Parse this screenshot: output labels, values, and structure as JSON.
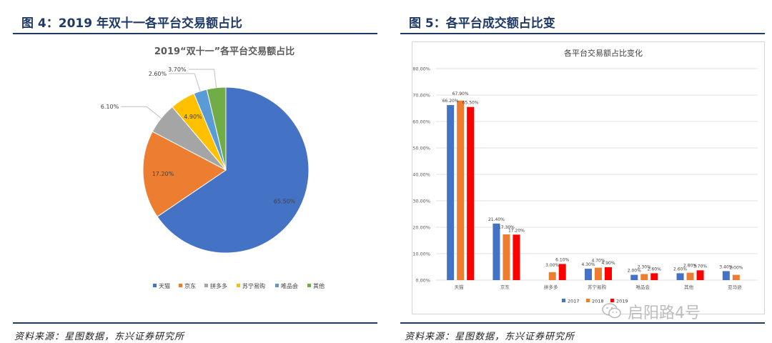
{
  "left_panel": {
    "figure_title": "图 4：2019 年双十一各平台交易额占比",
    "source": "资料来源：星图数据，东兴证券研究所"
  },
  "right_panel": {
    "figure_title": "图 5：各平台成交额占比变",
    "source": "资料来源：星图数据，东兴证券研究所"
  },
  "watermark": {
    "text": "启阳路4号",
    "icon": "wechat-icon"
  },
  "colors": {
    "rule": "#1f3a66",
    "blue": "#4472c4",
    "orange": "#ed7d31",
    "gray": "#a5a5a5",
    "yellow": "#ffc000",
    "lightblue": "#5b9bd5",
    "green": "#70ad47",
    "red": "#ff0000"
  },
  "chart_data": [
    {
      "type": "pie",
      "title": "2019“双十一”各平台交易额占比",
      "labels": [
        "天猫",
        "京东",
        "拼多多",
        "苏宁易购",
        "唯品会",
        "其他"
      ],
      "values": [
        65.5,
        17.2,
        6.1,
        4.9,
        2.6,
        3.7
      ],
      "value_labels": [
        "65.50%",
        "17.20%",
        "6.10%",
        "4.90%",
        "2.60%",
        "3.70%"
      ],
      "legend_position": "bottom"
    },
    {
      "type": "bar",
      "title": "各平台交易额占比变化",
      "categories": [
        "天猫",
        "京东",
        "拼多多",
        "苏宁易购",
        "唯品会",
        "其他",
        "亚马逊"
      ],
      "series": [
        {
          "name": "2017",
          "values": [
            66.2,
            21.4,
            null,
            4.3,
            2.0,
            2.6,
            3.4
          ],
          "labels": [
            "66.20%",
            "21.40%",
            "",
            "4.30%",
            "2.00%",
            "2.60%",
            "3.40%"
          ]
        },
        {
          "name": "2018",
          "values": [
            67.9,
            17.3,
            3.0,
            4.7,
            2.3,
            2.8,
            2.0
          ],
          "labels": [
            "67.90%",
            "17.30%",
            "3.00%",
            "4.70%",
            "2.30%",
            "2.80%",
            "2.00%"
          ]
        },
        {
          "name": "2019",
          "values": [
            65.5,
            17.2,
            6.1,
            4.9,
            2.6,
            3.7,
            null
          ],
          "labels": [
            "65.50%",
            "17.20%",
            "6.10%",
            "4.90%",
            "2.60%",
            "3.70%",
            ""
          ]
        }
      ],
      "yticks": [
        "0.00%",
        "10.00%",
        "20.00%",
        "30.00%",
        "40.00%",
        "50.00%",
        "60.00%",
        "70.00%",
        "80.00%"
      ],
      "ylim": [
        0,
        80
      ],
      "grid": true,
      "legend_position": "bottom"
    }
  ]
}
